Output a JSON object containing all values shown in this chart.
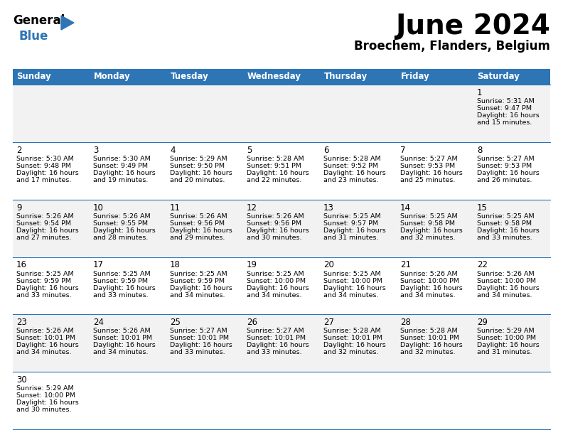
{
  "title": "June 2024",
  "subtitle": "Broechem, Flanders, Belgium",
  "header_color": "#2E75B6",
  "header_text_color": "#FFFFFF",
  "weekdays": [
    "Sunday",
    "Monday",
    "Tuesday",
    "Wednesday",
    "Thursday",
    "Friday",
    "Saturday"
  ],
  "bg_color": "#FFFFFF",
  "alt_row_color": "#F2F2F2",
  "cell_border_color": "#2E75B6",
  "days": [
    {
      "day": 1,
      "col": 6,
      "row": 0,
      "sunrise": "5:31 AM",
      "sunset": "9:47 PM",
      "daylight": "16 hours and 15 minutes"
    },
    {
      "day": 2,
      "col": 0,
      "row": 1,
      "sunrise": "5:30 AM",
      "sunset": "9:48 PM",
      "daylight": "16 hours and 17 minutes"
    },
    {
      "day": 3,
      "col": 1,
      "row": 1,
      "sunrise": "5:30 AM",
      "sunset": "9:49 PM",
      "daylight": "16 hours and 19 minutes"
    },
    {
      "day": 4,
      "col": 2,
      "row": 1,
      "sunrise": "5:29 AM",
      "sunset": "9:50 PM",
      "daylight": "16 hours and 20 minutes"
    },
    {
      "day": 5,
      "col": 3,
      "row": 1,
      "sunrise": "5:28 AM",
      "sunset": "9:51 PM",
      "daylight": "16 hours and 22 minutes"
    },
    {
      "day": 6,
      "col": 4,
      "row": 1,
      "sunrise": "5:28 AM",
      "sunset": "9:52 PM",
      "daylight": "16 hours and 23 minutes"
    },
    {
      "day": 7,
      "col": 5,
      "row": 1,
      "sunrise": "5:27 AM",
      "sunset": "9:53 PM",
      "daylight": "16 hours and 25 minutes"
    },
    {
      "day": 8,
      "col": 6,
      "row": 1,
      "sunrise": "5:27 AM",
      "sunset": "9:53 PM",
      "daylight": "16 hours and 26 minutes"
    },
    {
      "day": 9,
      "col": 0,
      "row": 2,
      "sunrise": "5:26 AM",
      "sunset": "9:54 PM",
      "daylight": "16 hours and 27 minutes"
    },
    {
      "day": 10,
      "col": 1,
      "row": 2,
      "sunrise": "5:26 AM",
      "sunset": "9:55 PM",
      "daylight": "16 hours and 28 minutes"
    },
    {
      "day": 11,
      "col": 2,
      "row": 2,
      "sunrise": "5:26 AM",
      "sunset": "9:56 PM",
      "daylight": "16 hours and 29 minutes"
    },
    {
      "day": 12,
      "col": 3,
      "row": 2,
      "sunrise": "5:26 AM",
      "sunset": "9:56 PM",
      "daylight": "16 hours and 30 minutes"
    },
    {
      "day": 13,
      "col": 4,
      "row": 2,
      "sunrise": "5:25 AM",
      "sunset": "9:57 PM",
      "daylight": "16 hours and 31 minutes"
    },
    {
      "day": 14,
      "col": 5,
      "row": 2,
      "sunrise": "5:25 AM",
      "sunset": "9:58 PM",
      "daylight": "16 hours and 32 minutes"
    },
    {
      "day": 15,
      "col": 6,
      "row": 2,
      "sunrise": "5:25 AM",
      "sunset": "9:58 PM",
      "daylight": "16 hours and 33 minutes"
    },
    {
      "day": 16,
      "col": 0,
      "row": 3,
      "sunrise": "5:25 AM",
      "sunset": "9:59 PM",
      "daylight": "16 hours and 33 minutes"
    },
    {
      "day": 17,
      "col": 1,
      "row": 3,
      "sunrise": "5:25 AM",
      "sunset": "9:59 PM",
      "daylight": "16 hours and 33 minutes"
    },
    {
      "day": 18,
      "col": 2,
      "row": 3,
      "sunrise": "5:25 AM",
      "sunset": "9:59 PM",
      "daylight": "16 hours and 34 minutes"
    },
    {
      "day": 19,
      "col": 3,
      "row": 3,
      "sunrise": "5:25 AM",
      "sunset": "10:00 PM",
      "daylight": "16 hours and 34 minutes"
    },
    {
      "day": 20,
      "col": 4,
      "row": 3,
      "sunrise": "5:25 AM",
      "sunset": "10:00 PM",
      "daylight": "16 hours and 34 minutes"
    },
    {
      "day": 21,
      "col": 5,
      "row": 3,
      "sunrise": "5:26 AM",
      "sunset": "10:00 PM",
      "daylight": "16 hours and 34 minutes"
    },
    {
      "day": 22,
      "col": 6,
      "row": 3,
      "sunrise": "5:26 AM",
      "sunset": "10:00 PM",
      "daylight": "16 hours and 34 minutes"
    },
    {
      "day": 23,
      "col": 0,
      "row": 4,
      "sunrise": "5:26 AM",
      "sunset": "10:01 PM",
      "daylight": "16 hours and 34 minutes"
    },
    {
      "day": 24,
      "col": 1,
      "row": 4,
      "sunrise": "5:26 AM",
      "sunset": "10:01 PM",
      "daylight": "16 hours and 34 minutes"
    },
    {
      "day": 25,
      "col": 2,
      "row": 4,
      "sunrise": "5:27 AM",
      "sunset": "10:01 PM",
      "daylight": "16 hours and 33 minutes"
    },
    {
      "day": 26,
      "col": 3,
      "row": 4,
      "sunrise": "5:27 AM",
      "sunset": "10:01 PM",
      "daylight": "16 hours and 33 minutes"
    },
    {
      "day": 27,
      "col": 4,
      "row": 4,
      "sunrise": "5:28 AM",
      "sunset": "10:01 PM",
      "daylight": "16 hours and 32 minutes"
    },
    {
      "day": 28,
      "col": 5,
      "row": 4,
      "sunrise": "5:28 AM",
      "sunset": "10:01 PM",
      "daylight": "16 hours and 32 minutes"
    },
    {
      "day": 29,
      "col": 6,
      "row": 4,
      "sunrise": "5:29 AM",
      "sunset": "10:00 PM",
      "daylight": "16 hours and 31 minutes"
    },
    {
      "day": 30,
      "col": 0,
      "row": 5,
      "sunrise": "5:29 AM",
      "sunset": "10:00 PM",
      "daylight": "16 hours and 30 minutes"
    }
  ],
  "num_rows": 6
}
